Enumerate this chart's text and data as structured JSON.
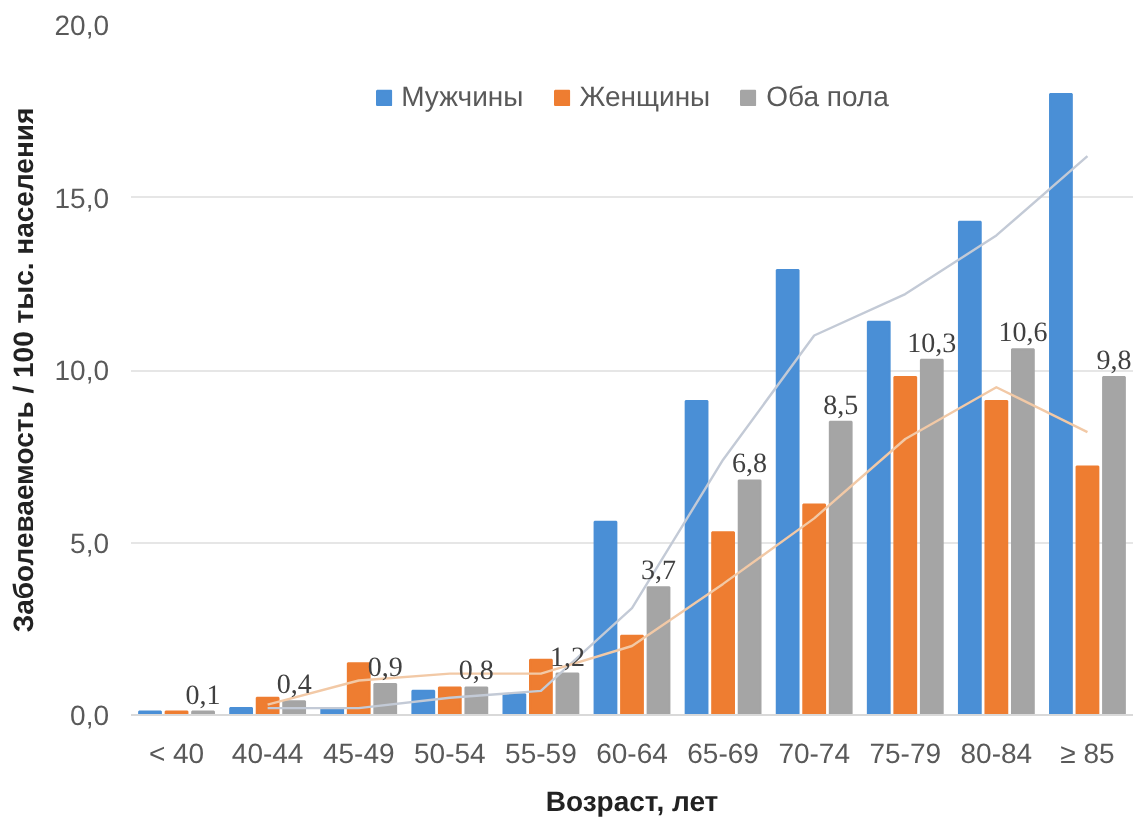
{
  "chart_data": {
    "type": "bar",
    "xlabel": "Возраст, лет",
    "ylabel": "Заболеваемость / 100 тыс. населения",
    "categories": [
      "< 40",
      "40-44",
      "45-49",
      "50-54",
      "55-59",
      "60-64",
      "65-69",
      "70-74",
      "75-79",
      "80-84",
      "≥ 85"
    ],
    "series": [
      {
        "name": "Мужчины",
        "color": "#4a8fd6",
        "values": [
          0.1,
          0.2,
          0.2,
          0.7,
          0.6,
          5.6,
          9.1,
          12.9,
          11.4,
          14.3,
          18.0
        ]
      },
      {
        "name": "Женщины",
        "color": "#ee7d31",
        "values": [
          0.1,
          0.5,
          1.5,
          0.8,
          1.6,
          2.3,
          5.3,
          6.1,
          9.8,
          9.1,
          7.2
        ]
      },
      {
        "name": "Оба пола",
        "color": "#a5a5a5",
        "values": [
          0.1,
          0.4,
          0.9,
          0.8,
          1.2,
          3.7,
          6.8,
          8.5,
          10.3,
          10.6,
          9.8
        ],
        "value_labels": [
          "0,1",
          "0,4",
          "0,9",
          "0,8",
          "1,2",
          "3,7",
          "6,8",
          "8,5",
          "10,3",
          "10,6",
          "9,8"
        ]
      },
      {
        "type": "line",
        "color": "#c3cad6",
        "values": [
          null,
          0.2,
          0.2,
          0.5,
          0.7,
          3.1,
          7.4,
          11.0,
          12.2,
          13.9,
          16.2
        ]
      },
      {
        "type": "line",
        "color": "#f2c9a6",
        "values": [
          null,
          0.3,
          1.0,
          1.2,
          1.2,
          2.0,
          3.8,
          5.7,
          8.0,
          9.5,
          8.2
        ]
      }
    ],
    "ylim": [
      0,
      20
    ],
    "yticks": [
      {
        "value": 0,
        "label": "0,0"
      },
      {
        "value": 5,
        "label": "5,0"
      },
      {
        "value": 10,
        "label": "10,0"
      },
      {
        "value": 15,
        "label": "15,0"
      },
      {
        "value": 20,
        "label": "20,0"
      }
    ],
    "grid": "y",
    "legend": "top"
  }
}
